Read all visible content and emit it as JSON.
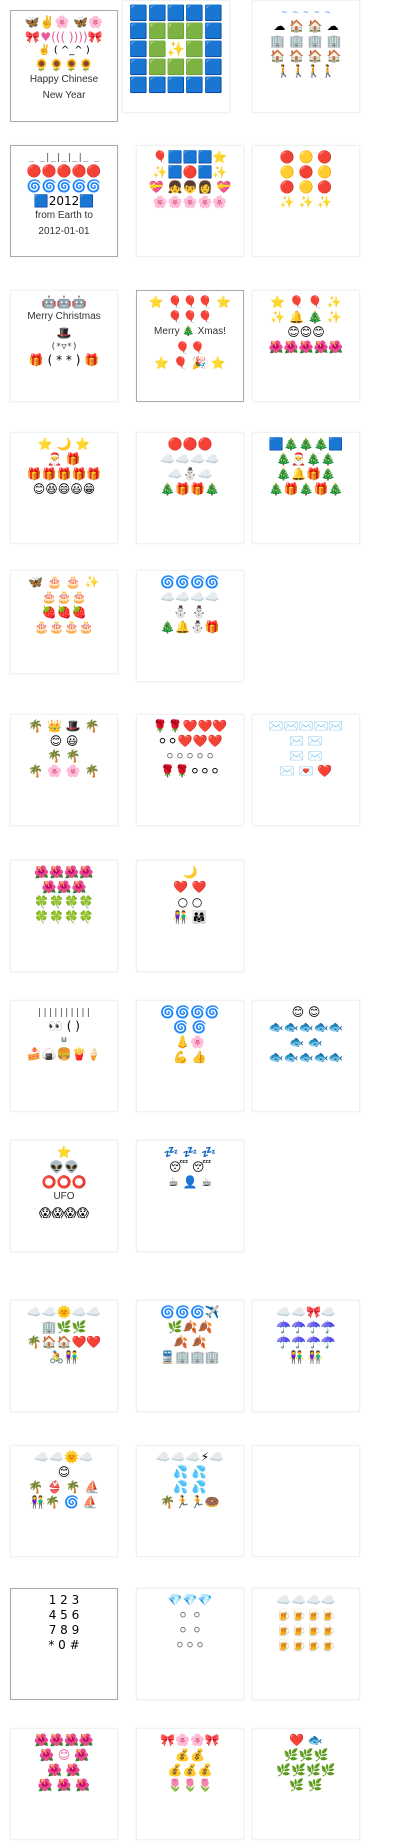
{
  "cards": {
    "c1": {
      "line1": "🦋✌️🌸 🦋🌸",
      "line2": "🎀♥((( ))))🎀",
      "line3": "✌️ ( ^_^ )",
      "line4": "🌻🌻🌻🌻",
      "text1": "Happy Chinese",
      "text2": "New Year"
    },
    "c2": {
      "line1": "🟦🟦🟦🟦🟦",
      "line2": "🟦🟩🟩🟩🟦",
      "line3": "🟦🟩✨🟩🟦",
      "line4": "🟦🟩🟩🟩🟦",
      "line5": "🟦🟦🟦🟦🟦"
    },
    "c3": {
      "line1": "~ ~ ~ ~ ~",
      "line2": "☁ 🏠 🏠 ☁",
      "line3": "🏢 🏢 🏢 🏢",
      "line4": "🏠 🏠 🏠 🏠",
      "line5": "🚶🚶🚶🚶"
    },
    "c4": {
      "line1": "_ _|_|_|_|_ _",
      "line2": "🔴🔴🔴🔴🔴",
      "line3": "🌀🌀🌀🌀🌀",
      "line4": "🟦2012🟦",
      "text1": "from Earth to",
      "text2": "2012-01-01"
    },
    "c5": {
      "line1": "🎈🟦🟦🟦⭐",
      "line2": "✨🟦🔴🟦✨",
      "line3": "💝 👧👦👩 💝",
      "line4": "🌸🌸🌸🌸🌸"
    },
    "c6": {
      "line1": "🔴 🟡 🔴",
      "line2": "🟡 🔴 🟡",
      "line3": "🔴 🟡 🔴",
      "line4": "✨ ✨ ✨"
    },
    "c7": {
      "line1": "🤖🤖🤖",
      "text1": "Merry Christmas",
      "line2": "🎩",
      "line3": "(*▽*)",
      "line4": "🎁 ( * * ) 🎁"
    },
    "c8": {
      "line1": "⭐ 🎈🎈🎈 ⭐",
      "line2": "🎈🎈🎈",
      "text1": "Merry 🎄 Xmas!",
      "line3": "🎈🎈",
      "line4": "⭐ 🎈 🎉 ⭐"
    },
    "c9": {
      "line1": "⭐ 🎈 🎈 ✨",
      "line2": "✨ 🔔 🎄 ✨",
      "line3": "😊😊😊",
      "line4": "🌺🌺🌺🌺🌺"
    },
    "c10": {
      "line1": "⭐ 🌙 ⭐",
      "line2": "🎅 🎁",
      "line3": "🎁🎁🎁🎁🎁",
      "line4": "😊😆😄😃😁"
    },
    "c11": {
      "line1": "🔴🔴🔴",
      "line2": "☁️☁️☁️☁️",
      "line3": "☁️⛄☁️",
      "line4": "🎄🎁🎁🎄"
    },
    "c12": {
      "line1": "🟦🎄🎄🎄🟦",
      "line2": "🎄🎅🎄🎄",
      "line3": "🎄🔔🎁🎄",
      "line4": "🎄🎁🎄🎁🎄"
    },
    "c13": {
      "line1": "🦋 🎂 🎂 ✨",
      "line2": "🎂🎂🎂",
      "line3": "🍓🍓🍓",
      "line4": "🎂🎂🎂🎂"
    },
    "c14": {
      "line1": "🌀🌀🌀🌀",
      "line2": "☁️☁️☁️☁️",
      "line3": "⛄ ⛄",
      "line4": "🎄🔔⛄🎁"
    },
    "c15": {
      "line1": "🌴 👑 🎩 🌴",
      "line2": "😊 😃",
      "line3": "🌴 🌴",
      "line4": "🌴 🌸 🌸 🌴"
    },
    "c16": {
      "line1": "🌹🌹❤️❤️❤️",
      "line2": "⚪⚪❤️❤️❤️",
      "line3": "⚪⚪⚪⚪⚪",
      "line4": "🌹🌹⚪⚪⚪"
    },
    "c17": {
      "line1": "✉️✉️✉️✉️✉️",
      "line2": "✉️ ✉️",
      "line3": "✉️ ✉️",
      "line4": "✉️ 💌 ❤️"
    },
    "c18": {
      "line1": "🌺🌺🌺🌺",
      "line2": "🌺🌺🌺",
      "line3": "🍀🍀🍀🍀",
      "line4": "🍀🍀🍀🍀"
    },
    "c19": {
      "line1": "🌙",
      "line2": "❤️ ❤️",
      "line3": "○ ○",
      "line4": "👫 👨‍👩‍👧"
    },
    "c20": {
      "line1": "||||||||||",
      "line2": "👀 ( ) ",
      "line3": "ω",
      "line4": "🍰🍙🍔🍟🍦"
    },
    "c21": {
      "line1": "🌀🌀🌀🌀",
      "line2": "🌀 🌀",
      "line3": "👃🌸",
      "line4": "💪 👍"
    },
    "c22": {
      "line1": "😊 😊",
      "line2": "🐟🐟🐟🐟🐟",
      "line3": "🐟 🐟",
      "line4": "🐟🐟🐟🐟🐟"
    },
    "c23": {
      "line1": "⭐",
      "line2": "👽👽",
      "line3": "⭕⭕⭕",
      "text1": "UFO",
      "line4": "😱😱😱😱"
    },
    "c24": {
      "line1": "💤 💤 💤",
      "line2": "😴 😴",
      "line3": "☕ 👤 ☕"
    },
    "c25": {
      "line1": "☁️☁️🌞☁️☁️",
      "line2": "🏢🌿🌿",
      "line3": "🌴🏠🏠❤️❤️",
      "line4": "🚴👫"
    },
    "c26": {
      "line1": "🌀🌀🌀✈️",
      "line2": "🌿🍂🍂",
      "line3": "🍂 🍂",
      "line4": "🚆🏢🏢🏢"
    },
    "c27": {
      "line1": "☁️☁️🎀☁️",
      "line2": "☂️☂️☂️☂️",
      "line3": "☂️☂️☂️☂️",
      "line4": "👫 👫"
    },
    "c28": {
      "line1": "☁️☁️🌞☁️",
      "line2": "😊",
      "line3": "🌴 👙 🌴 ⛵",
      "line4": "👫🌴 🌀 ⛵"
    },
    "c29": {
      "line1": "☁️☁️☁️⚡☁️",
      "line2": "💦 💦",
      "line3": "💦 💦",
      "line4": "🌴🏃🏃🍩"
    },
    "c30": {
      "line1": ""
    },
    "c31": {
      "line1": "1 2 3",
      "line2": "4 5 6",
      "line3": "7 8 9",
      "line4": "* 0 #"
    },
    "c32": {
      "line1": "💎💎💎",
      "line2": "⚪ ⚪",
      "line3": "⚪ ⚪",
      "line4": "⚪⚪⚪"
    },
    "c33": {
      "line1": "☁️☁️☁️☁️",
      "line2": "🍺🍺🍺🍺",
      "line3": "🍺🍺🍺🍺",
      "line4": "🍺🍺🍺🍺"
    },
    "c34": {
      "line1": "🌺🌺🌺🌺",
      "line2": "🌺 😊 🌺",
      "line3": "🌺 🌺",
      "line4": "🌺 🌺 🌺"
    },
    "c35": {
      "line1": "🎀🌸🌸🎀",
      "line2": "💰💰",
      "line3": "💰💰💰",
      "line4": "🌷🌷🌷"
    },
    "c36": {
      "line1": "❤️ 🐟",
      "line2": "🌿🌿🌿",
      "line3": "🌿🌿🌿🌿",
      "line4": "🌿 🌿"
    }
  }
}
